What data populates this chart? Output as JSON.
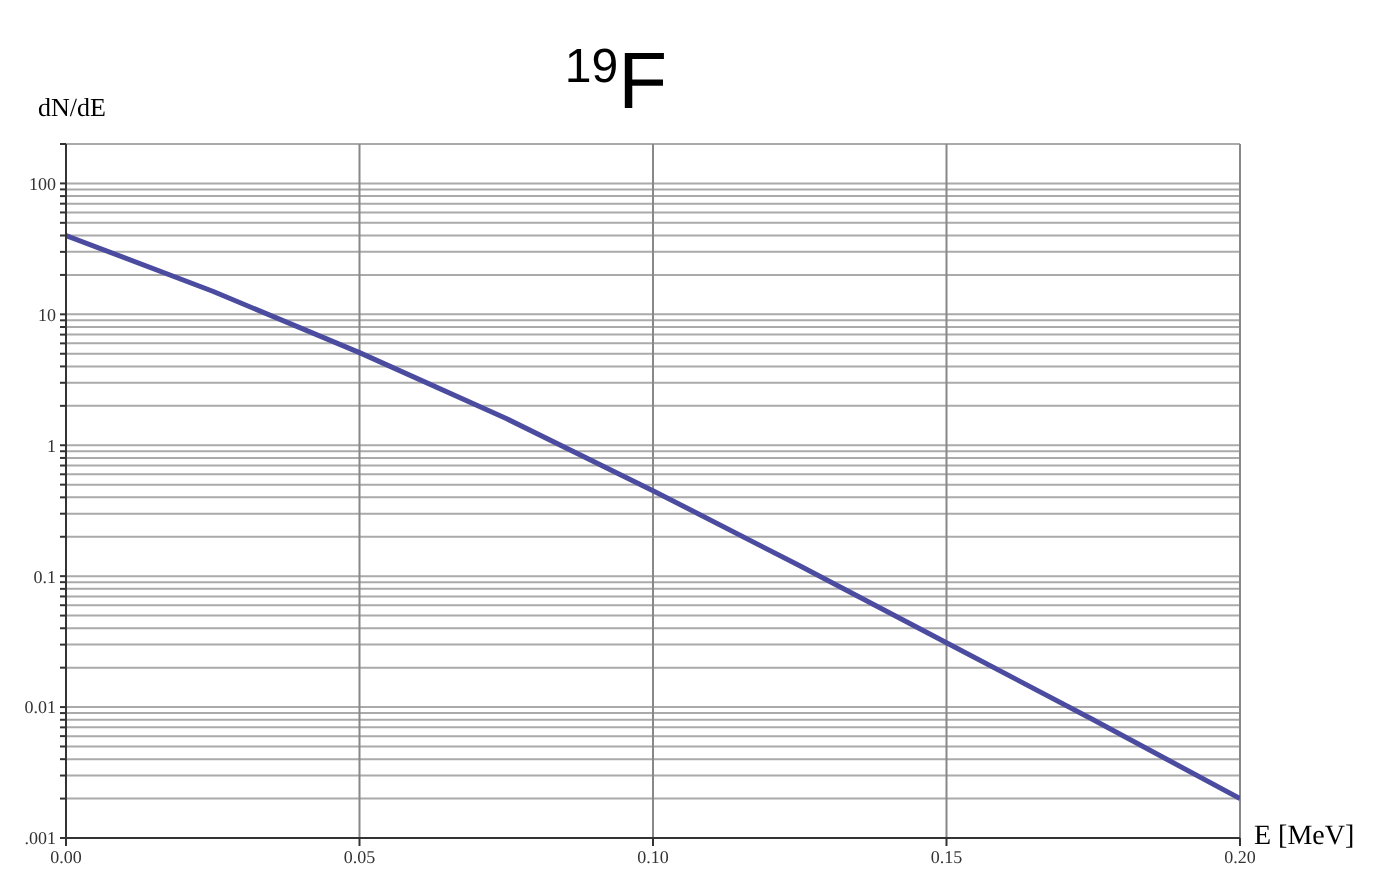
{
  "chart_data": {
    "type": "line",
    "title": "$^{19}$F",
    "xlabel": "E [MeV]",
    "ylabel": "dN/dE",
    "x": [
      0,
      0.025,
      0.05,
      0.075,
      0.1,
      0.125,
      0.15,
      0.175,
      0.2
    ],
    "series": [
      {
        "color": "#4b4ba0",
        "values": [
          40,
          15,
          5.1,
          1.6,
          0.45,
          0.12,
          0.031,
          0.008,
          0.002
        ]
      }
    ],
    "log": "y",
    "xlim": [
      0,
      0.2
    ],
    "ylim": [
      0.001,
      200
    ],
    "xticks": [
      {
        "value": 0,
        "label": "0.00"
      },
      {
        "value": 0.05,
        "label": "0.05"
      },
      {
        "value": 0.1,
        "label": "0.10"
      },
      {
        "value": 0.15,
        "label": "0.15"
      },
      {
        "value": 0.2,
        "label": "0.20"
      }
    ],
    "yticks": [
      {
        "value": 0.001,
        "label": ".001"
      },
      {
        "value": 0.002,
        "label": null
      },
      {
        "value": 0.003,
        "label": null
      },
      {
        "value": 0.004,
        "label": null
      },
      {
        "value": 0.005,
        "label": null
      },
      {
        "value": 0.006,
        "label": null
      },
      {
        "value": 0.007,
        "label": null
      },
      {
        "value": 0.008,
        "label": null
      },
      {
        "value": 0.009,
        "label": null
      },
      {
        "value": 0.01,
        "label": "0.01"
      },
      {
        "value": 0.02,
        "label": null
      },
      {
        "value": 0.03,
        "label": null
      },
      {
        "value": 0.04,
        "label": null
      },
      {
        "value": 0.05,
        "label": null
      },
      {
        "value": 0.06,
        "label": null
      },
      {
        "value": 0.07,
        "label": null
      },
      {
        "value": 0.08,
        "label": null
      },
      {
        "value": 0.09,
        "label": null
      },
      {
        "value": 0.1,
        "label": "0.1"
      },
      {
        "value": 0.2,
        "label": null
      },
      {
        "value": 0.3,
        "label": null
      },
      {
        "value": 0.4,
        "label": null
      },
      {
        "value": 0.5,
        "label": null
      },
      {
        "value": 0.6,
        "label": null
      },
      {
        "value": 0.7,
        "label": null
      },
      {
        "value": 0.8,
        "label": null
      },
      {
        "value": 0.9,
        "label": null
      },
      {
        "value": 1,
        "label": "1"
      },
      {
        "value": 2,
        "label": null
      },
      {
        "value": 3,
        "label": null
      },
      {
        "value": 4,
        "label": null
      },
      {
        "value": 5,
        "label": null
      },
      {
        "value": 6,
        "label": null
      },
      {
        "value": 7,
        "label": null
      },
      {
        "value": 8,
        "label": null
      },
      {
        "value": 9,
        "label": null
      },
      {
        "value": 10,
        "label": "10"
      },
      {
        "value": 20,
        "label": null
      },
      {
        "value": 30,
        "label": null
      },
      {
        "value": 40,
        "label": null
      },
      {
        "value": 50,
        "label": null
      },
      {
        "value": 60,
        "label": null
      },
      {
        "value": 70,
        "label": null
      },
      {
        "value": 80,
        "label": null
      },
      {
        "value": 90,
        "label": null
      },
      {
        "value": 100,
        "label": "100"
      },
      {
        "value": 200,
        "label": null
      }
    ],
    "grid": true,
    "marker": "none",
    "line_style": "solid"
  }
}
